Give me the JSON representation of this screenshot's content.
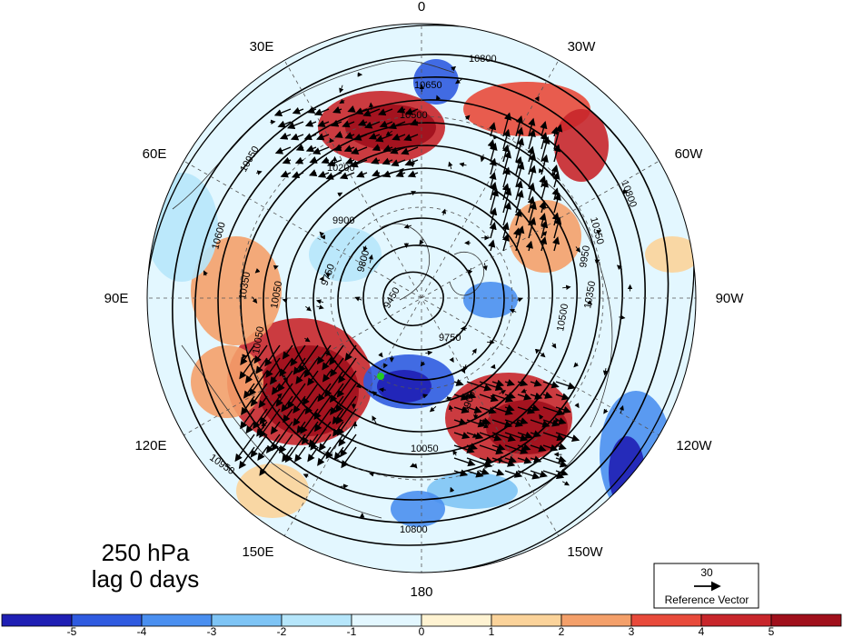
{
  "map": {
    "projection": "north-polar-stereographic",
    "field": "geopotential height contours with shaded anomaly and wave-activity vectors",
    "longitude_labels": [
      "0",
      "30W",
      "60W",
      "90W",
      "120W",
      "150W",
      "180",
      "150E",
      "120E",
      "90E",
      "60E",
      "30E"
    ],
    "contour_labels": [
      "10800",
      "10650",
      "10500",
      "10200",
      "10950",
      "10600",
      "10350",
      "10050",
      "9900",
      "9750",
      "9450",
      "10050",
      "10800",
      "10950",
      "10800",
      "10350",
      "10500",
      "9900",
      "9800",
      "9750",
      "10350",
      "10050",
      "9950"
    ],
    "marker_color": "#22cc22"
  },
  "title": {
    "line1": "250 hPa",
    "line2": "lag 0 days"
  },
  "reference_vector": {
    "value": "30",
    "label": "Reference Vector"
  },
  "colorbar": {
    "ticks": [
      "-5",
      "-4",
      "-3",
      "-2",
      "-1",
      "0",
      "1",
      "2",
      "3",
      "4",
      "5"
    ],
    "colors": [
      "#1f1fb4",
      "#2f5be0",
      "#4a8ff0",
      "#7ec4f5",
      "#b6e6fb",
      "#e3f7ff",
      "#fff3d2",
      "#fbd39a",
      "#f4a06a",
      "#e84a3b",
      "#c8262b",
      "#a0101c"
    ]
  }
}
